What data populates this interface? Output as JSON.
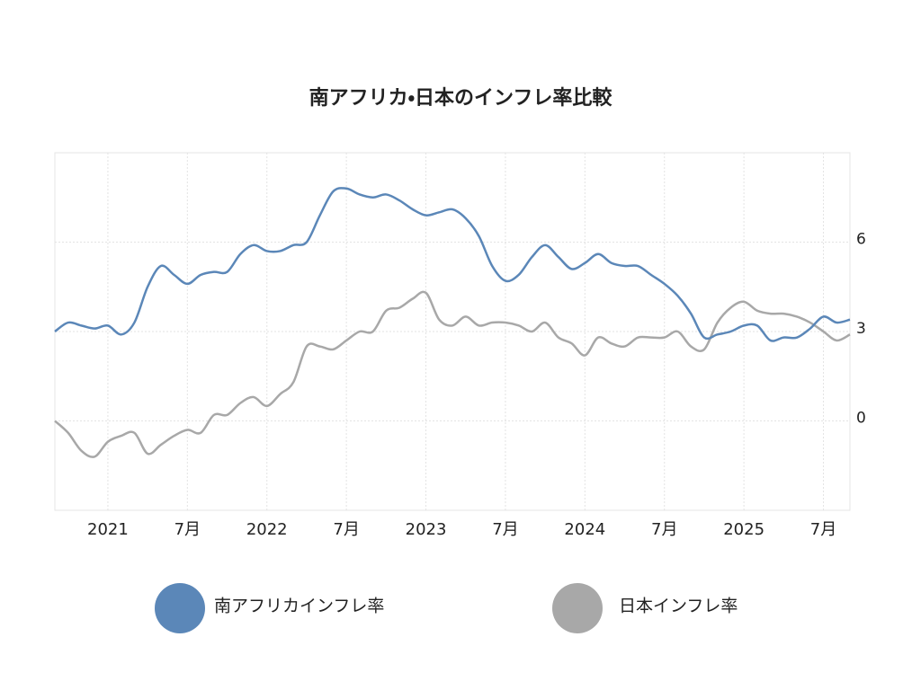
{
  "chart_data": {
    "type": "line",
    "title": "南アフリカ・日本のインフレ率比較",
    "categories": [
      null,
      null,
      null,
      null,
      "2021",
      null,
      null,
      null,
      null,
      null,
      "7月",
      null,
      null,
      null,
      null,
      null,
      "2022",
      null,
      null,
      null,
      null,
      null,
      "7月",
      null,
      null,
      null,
      null,
      null,
      "2023",
      null,
      null,
      null,
      null,
      null,
      "7月",
      null,
      null,
      null,
      null,
      null,
      "2024",
      null,
      null,
      null,
      null,
      null,
      "7月",
      null,
      null,
      null,
      null,
      null,
      "2025",
      null,
      null,
      null,
      null,
      null,
      "7月",
      null,
      null
    ],
    "series": [
      {
        "name": "南アフリカインフレ率",
        "color": "#5b87b8",
        "values": [
          3.0,
          3.3,
          3.2,
          3.1,
          3.2,
          2.9,
          3.3,
          4.5,
          5.2,
          4.9,
          4.6,
          4.9,
          5.0,
          5.0,
          5.6,
          5.9,
          5.7,
          5.7,
          5.9,
          6.0,
          6.9,
          7.7,
          7.8,
          7.6,
          7.5,
          7.6,
          7.4,
          7.1,
          6.9,
          7.0,
          7.1,
          6.8,
          6.2,
          5.2,
          4.7,
          4.9,
          5.5,
          5.9,
          5.5,
          5.1,
          5.3,
          5.6,
          5.3,
          5.2,
          5.2,
          4.9,
          4.6,
          4.2,
          3.6,
          2.8,
          2.9,
          3.0,
          3.2,
          3.2,
          2.7,
          2.8,
          2.8,
          3.1,
          3.5,
          3.3,
          3.4
        ]
      },
      {
        "name": "日本インフレ率",
        "color": "#a8a8a8",
        "values": [
          0.0,
          -0.4,
          -1.0,
          -1.2,
          -0.7,
          -0.5,
          -0.4,
          -1.1,
          -0.8,
          -0.5,
          -0.3,
          -0.4,
          0.2,
          0.2,
          0.6,
          0.8,
          0.5,
          0.9,
          1.3,
          2.5,
          2.5,
          2.4,
          2.7,
          3.0,
          3.0,
          3.7,
          3.8,
          4.1,
          4.3,
          3.4,
          3.2,
          3.5,
          3.2,
          3.3,
          3.3,
          3.2,
          3.0,
          3.3,
          2.8,
          2.6,
          2.2,
          2.8,
          2.6,
          2.5,
          2.8,
          2.8,
          2.8,
          3.0,
          2.5,
          2.4,
          3.3,
          3.8,
          4.0,
          3.7,
          3.6,
          3.6,
          3.5,
          3.3,
          3.0,
          2.7,
          2.9
        ]
      }
    ],
    "ylim": [
      -3,
      9
    ],
    "yticks": [
      0,
      3,
      6
    ],
    "grid": true
  }
}
